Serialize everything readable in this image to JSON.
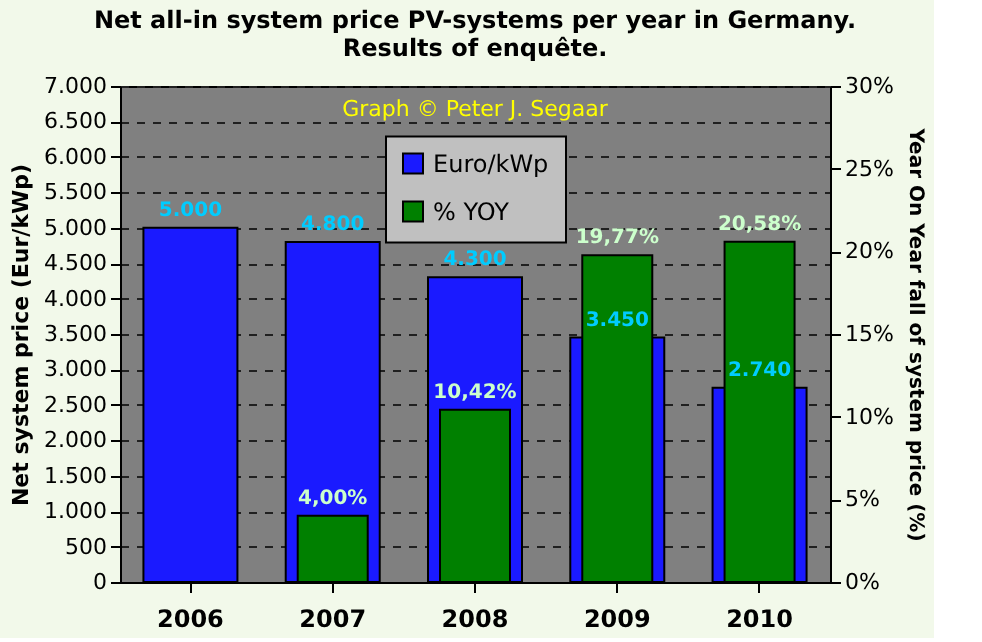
{
  "chart_data": {
    "type": "bar",
    "title": "Net all-in system price PV-systems per year in Germany.",
    "subtitle": "Results of enquête.",
    "annotations": [
      "Graph © Peter J. Segaar"
    ],
    "categories": [
      "2006",
      "2007",
      "2008",
      "2009",
      "2010"
    ],
    "series": [
      {
        "name": "Euro/kWp",
        "color": "#1a1aff",
        "values": [
          5000,
          4800,
          4300,
          3450,
          2740
        ],
        "value_labels": [
          "5.000",
          "4.800",
          "4.300",
          "3.450",
          "2.740"
        ]
      },
      {
        "name": "% YOY",
        "color": "#008000",
        "axis": "y2",
        "values": [
          null,
          4.0,
          10.42,
          19.77,
          20.58
        ],
        "value_labels": [
          null,
          "4,00%",
          "10,42%",
          "19,77%",
          "20,58%"
        ]
      }
    ],
    "ylabel": "Net system price (Eur/kWp)",
    "y2label": "Year On Year fall of system price (%)",
    "ylim": [
      0,
      7000
    ],
    "yticks": [
      0,
      500,
      {
        "value": 1000,
        "label": "1.000"
      },
      {
        "value": 1500,
        "label": "1.500"
      },
      {
        "value": 2000,
        "label": "2.000"
      },
      {
        "value": 2500,
        "label": "2.500"
      },
      {
        "value": 3000,
        "label": "3.000"
      },
      {
        "value": 3500,
        "label": "3.500"
      },
      {
        "value": 4000,
        "label": "4.000"
      },
      {
        "value": 4500,
        "label": "4.500"
      },
      {
        "value": 5000,
        "label": "5.000"
      },
      {
        "value": 5500,
        "label": "5.500"
      },
      {
        "value": 6000,
        "label": "6.000"
      },
      {
        "value": 6500,
        "label": "6.500"
      },
      {
        "value": 7000,
        "label": "7.000"
      }
    ],
    "y2lim": [
      0,
      30
    ],
    "y2ticks": [
      {
        "value": 0,
        "label": "0%"
      },
      {
        "value": 5,
        "label": "5%"
      },
      {
        "value": 10,
        "label": "10%"
      },
      {
        "value": 15,
        "label": "15%"
      },
      {
        "value": 20,
        "label": "20%"
      },
      {
        "value": 25,
        "label": "25%"
      },
      {
        "value": 30,
        "label": "30%"
      }
    ],
    "grid": "y",
    "legend": "top"
  }
}
